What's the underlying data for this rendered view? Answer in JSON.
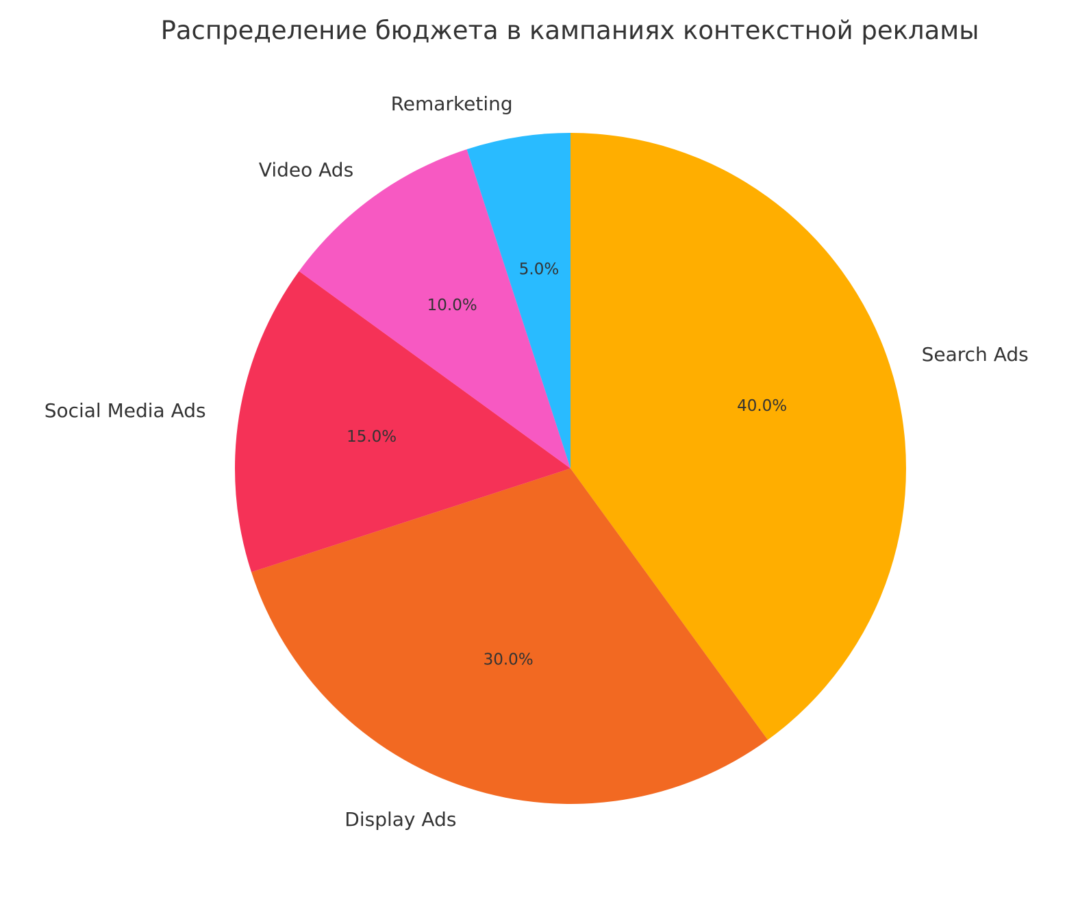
{
  "chart_data": {
    "type": "pie",
    "title": "Распределение бюджета в кампаниях контекстной рекламы",
    "categories": [
      "Search Ads",
      "Display Ads",
      "Social Media Ads",
      "Video Ads",
      "Remarketing"
    ],
    "values": [
      40,
      30,
      15,
      10,
      5
    ],
    "value_labels": [
      "40.0%",
      "30.0%",
      "15.0%",
      "10.0%",
      "5.0%"
    ],
    "colors": [
      "#FFAE00",
      "#F26922",
      "#F53257",
      "#F759C2",
      "#29BBFF"
    ],
    "start_angle": 90,
    "direction": "clockwise",
    "legend": "none"
  }
}
